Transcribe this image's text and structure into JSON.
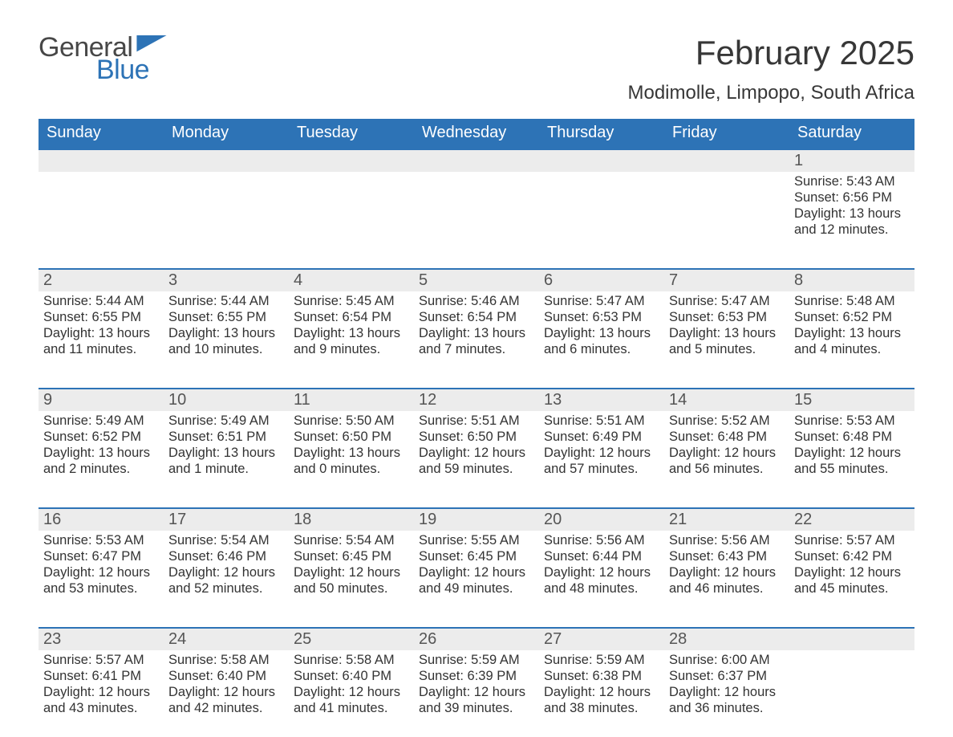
{
  "logo": {
    "general": "General",
    "blue": "Blue"
  },
  "title": "February 2025",
  "location": "Modimolle, Limpopo, South Africa",
  "colors": {
    "header_blue": "#2d73b6",
    "row_bg": "#ececec",
    "text": "#303031",
    "page_bg": "#ffffff"
  },
  "days": [
    "Sunday",
    "Monday",
    "Tuesday",
    "Wednesday",
    "Thursday",
    "Friday",
    "Saturday"
  ],
  "weeks": [
    {
      "nums": [
        "",
        "",
        "",
        "",
        "",
        "",
        "1"
      ],
      "info": [
        "",
        "",
        "",
        "",
        "",
        "",
        "Sunrise: 5:43 AM\nSunset: 6:56 PM\nDaylight: 13 hours and 12 minutes."
      ]
    },
    {
      "nums": [
        "2",
        "3",
        "4",
        "5",
        "6",
        "7",
        "8"
      ],
      "info": [
        "Sunrise: 5:44 AM\nSunset: 6:55 PM\nDaylight: 13 hours and 11 minutes.",
        "Sunrise: 5:44 AM\nSunset: 6:55 PM\nDaylight: 13 hours and 10 minutes.",
        "Sunrise: 5:45 AM\nSunset: 6:54 PM\nDaylight: 13 hours and 9 minutes.",
        "Sunrise: 5:46 AM\nSunset: 6:54 PM\nDaylight: 13 hours and 7 minutes.",
        "Sunrise: 5:47 AM\nSunset: 6:53 PM\nDaylight: 13 hours and 6 minutes.",
        "Sunrise: 5:47 AM\nSunset: 6:53 PM\nDaylight: 13 hours and 5 minutes.",
        "Sunrise: 5:48 AM\nSunset: 6:52 PM\nDaylight: 13 hours and 4 minutes."
      ]
    },
    {
      "nums": [
        "9",
        "10",
        "11",
        "12",
        "13",
        "14",
        "15"
      ],
      "info": [
        "Sunrise: 5:49 AM\nSunset: 6:52 PM\nDaylight: 13 hours and 2 minutes.",
        "Sunrise: 5:49 AM\nSunset: 6:51 PM\nDaylight: 13 hours and 1 minute.",
        "Sunrise: 5:50 AM\nSunset: 6:50 PM\nDaylight: 13 hours and 0 minutes.",
        "Sunrise: 5:51 AM\nSunset: 6:50 PM\nDaylight: 12 hours and 59 minutes.",
        "Sunrise: 5:51 AM\nSunset: 6:49 PM\nDaylight: 12 hours and 57 minutes.",
        "Sunrise: 5:52 AM\nSunset: 6:48 PM\nDaylight: 12 hours and 56 minutes.",
        "Sunrise: 5:53 AM\nSunset: 6:48 PM\nDaylight: 12 hours and 55 minutes."
      ]
    },
    {
      "nums": [
        "16",
        "17",
        "18",
        "19",
        "20",
        "21",
        "22"
      ],
      "info": [
        "Sunrise: 5:53 AM\nSunset: 6:47 PM\nDaylight: 12 hours and 53 minutes.",
        "Sunrise: 5:54 AM\nSunset: 6:46 PM\nDaylight: 12 hours and 52 minutes.",
        "Sunrise: 5:54 AM\nSunset: 6:45 PM\nDaylight: 12 hours and 50 minutes.",
        "Sunrise: 5:55 AM\nSunset: 6:45 PM\nDaylight: 12 hours and 49 minutes.",
        "Sunrise: 5:56 AM\nSunset: 6:44 PM\nDaylight: 12 hours and 48 minutes.",
        "Sunrise: 5:56 AM\nSunset: 6:43 PM\nDaylight: 12 hours and 46 minutes.",
        "Sunrise: 5:57 AM\nSunset: 6:42 PM\nDaylight: 12 hours and 45 minutes."
      ]
    },
    {
      "nums": [
        "23",
        "24",
        "25",
        "26",
        "27",
        "28",
        ""
      ],
      "info": [
        "Sunrise: 5:57 AM\nSunset: 6:41 PM\nDaylight: 12 hours and 43 minutes.",
        "Sunrise: 5:58 AM\nSunset: 6:40 PM\nDaylight: 12 hours and 42 minutes.",
        "Sunrise: 5:58 AM\nSunset: 6:40 PM\nDaylight: 12 hours and 41 minutes.",
        "Sunrise: 5:59 AM\nSunset: 6:39 PM\nDaylight: 12 hours and 39 minutes.",
        "Sunrise: 5:59 AM\nSunset: 6:38 PM\nDaylight: 12 hours and 38 minutes.",
        "Sunrise: 6:00 AM\nSunset: 6:37 PM\nDaylight: 12 hours and 36 minutes.",
        ""
      ]
    }
  ]
}
